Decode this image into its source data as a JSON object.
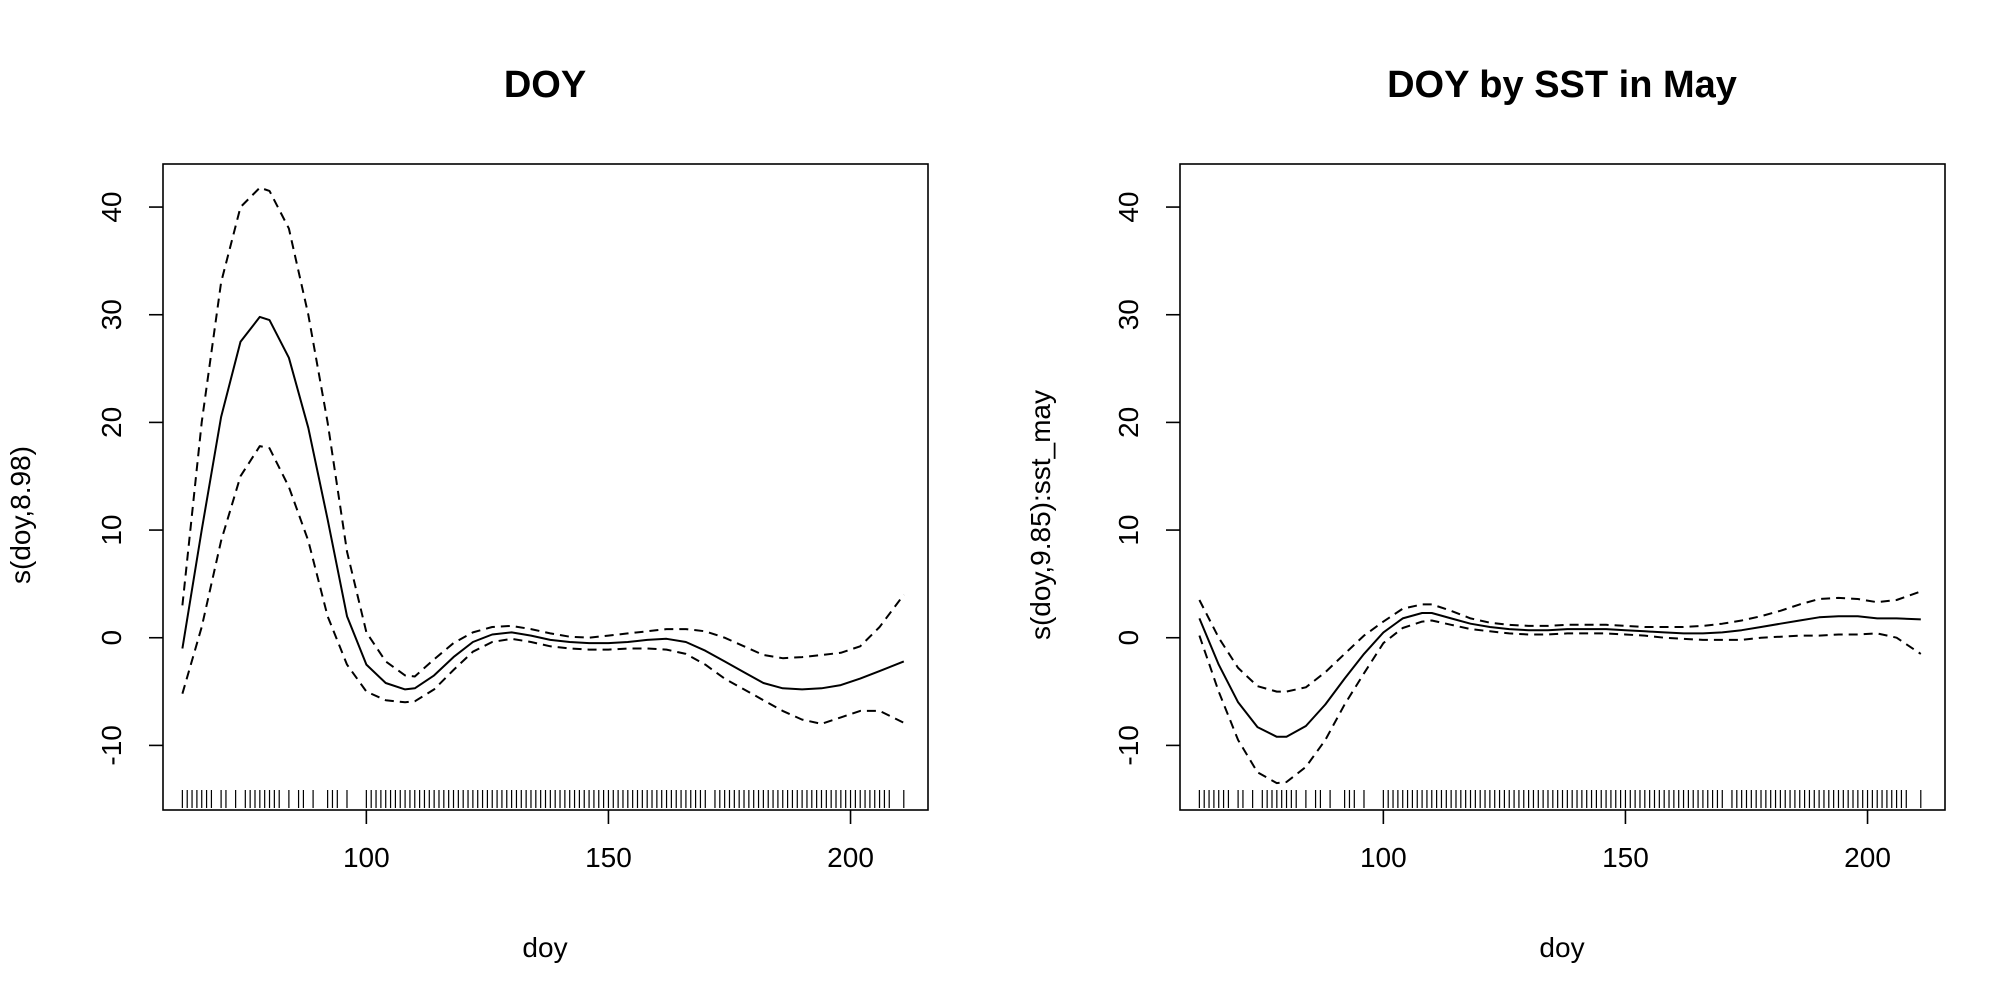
{
  "chart_data": [
    {
      "type": "line",
      "title": "DOY",
      "xlabel": "doy",
      "ylabel": "s(doy,8.98)",
      "xlim": [
        58,
        216
      ],
      "ylim": [
        -16,
        44
      ],
      "xticks": [
        100,
        150,
        200
      ],
      "yticks": [
        -10,
        0,
        10,
        20,
        30,
        40
      ],
      "x": [
        62,
        66,
        70,
        74,
        78,
        80,
        84,
        88,
        92,
        96,
        100,
        104,
        108,
        110,
        114,
        118,
        122,
        126,
        130,
        134,
        138,
        142,
        146,
        150,
        154,
        158,
        162,
        166,
        170,
        174,
        178,
        182,
        186,
        190,
        194,
        198,
        202,
        206,
        211
      ],
      "series": [
        {
          "role": "estimate",
          "values": [
            -1,
            10,
            20.5,
            27.5,
            29.8,
            29.5,
            26,
            19.5,
            11,
            2,
            -2.5,
            -4.2,
            -4.8,
            -4.7,
            -3.5,
            -1.8,
            -0.4,
            0.3,
            0.5,
            0.2,
            -0.2,
            -0.4,
            -0.5,
            -0.5,
            -0.4,
            -0.2,
            -0.1,
            -0.4,
            -1.2,
            -2.2,
            -3.2,
            -4.2,
            -4.7,
            -4.8,
            -4.7,
            -4.4,
            -3.8,
            -3.1,
            -2.2
          ]
        },
        {
          "role": "upper",
          "values": [
            3,
            20,
            33,
            40,
            41.8,
            41.5,
            38,
            30,
            20,
            8,
            0.5,
            -2.2,
            -3.5,
            -3.6,
            -2,
            -0.5,
            0.5,
            1,
            1.1,
            0.8,
            0.4,
            0.1,
            0,
            0.2,
            0.4,
            0.6,
            0.8,
            0.8,
            0.6,
            0,
            -0.8,
            -1.6,
            -1.9,
            -1.8,
            -1.6,
            -1.4,
            -0.8,
            1,
            4
          ]
        },
        {
          "role": "lower",
          "values": [
            -5.2,
            1,
            9,
            15,
            17.8,
            17.6,
            14,
            9,
            2,
            -2.5,
            -5,
            -5.8,
            -6,
            -5.9,
            -4.8,
            -3,
            -1.3,
            -0.4,
            -0.1,
            -0.4,
            -0.8,
            -1,
            -1.1,
            -1.1,
            -1,
            -1,
            -1.1,
            -1.5,
            -2.5,
            -3.8,
            -4.8,
            -5.8,
            -6.8,
            -7.6,
            -8,
            -7.4,
            -6.8,
            -6.8,
            -7.9
          ]
        }
      ],
      "rug": [
        62,
        63,
        64,
        65,
        66,
        67,
        68,
        70,
        71,
        73,
        75,
        76,
        77,
        78,
        79,
        80,
        81,
        82,
        84,
        86,
        87,
        89,
        92,
        93,
        94,
        96,
        100,
        101,
        102,
        103,
        104,
        105,
        106,
        107,
        108,
        109,
        110,
        111,
        112,
        113,
        114,
        115,
        116,
        117,
        118,
        119,
        120,
        121,
        122,
        123,
        124,
        125,
        126,
        127,
        128,
        129,
        130,
        131,
        132,
        133,
        134,
        135,
        136,
        137,
        138,
        139,
        140,
        141,
        142,
        143,
        144,
        145,
        146,
        147,
        148,
        149,
        150,
        151,
        152,
        153,
        154,
        155,
        156,
        157,
        158,
        159,
        160,
        161,
        162,
        163,
        164,
        165,
        166,
        167,
        168,
        169,
        170,
        172,
        173,
        174,
        175,
        176,
        177,
        178,
        179,
        180,
        181,
        182,
        183,
        184,
        185,
        186,
        187,
        188,
        189,
        190,
        191,
        192,
        193,
        194,
        195,
        196,
        197,
        198,
        199,
        200,
        201,
        202,
        203,
        204,
        205,
        206,
        207,
        208,
        211
      ]
    },
    {
      "type": "line",
      "title": "DOY by SST in May",
      "xlabel": "doy",
      "ylabel": "s(doy,9.85):sst_may",
      "xlim": [
        58,
        216
      ],
      "ylim": [
        -16,
        44
      ],
      "xticks": [
        100,
        150,
        200
      ],
      "yticks": [
        -10,
        0,
        10,
        20,
        30,
        40
      ],
      "x": [
        62,
        66,
        70,
        74,
        78,
        80,
        84,
        88,
        92,
        96,
        100,
        104,
        108,
        110,
        114,
        118,
        122,
        126,
        130,
        134,
        138,
        142,
        146,
        150,
        154,
        158,
        162,
        166,
        170,
        174,
        178,
        182,
        186,
        190,
        194,
        198,
        202,
        206,
        211
      ],
      "series": [
        {
          "role": "estimate",
          "values": [
            1.8,
            -2.5,
            -6,
            -8.3,
            -9.2,
            -9.2,
            -8.2,
            -6.2,
            -3.8,
            -1.5,
            0.5,
            1.8,
            2.3,
            2.3,
            1.8,
            1.3,
            1,
            0.8,
            0.7,
            0.7,
            0.8,
            0.8,
            0.8,
            0.7,
            0.6,
            0.5,
            0.4,
            0.4,
            0.5,
            0.7,
            1,
            1.3,
            1.6,
            1.9,
            2,
            2,
            1.8,
            1.8,
            1.7
          ]
        },
        {
          "role": "upper",
          "values": [
            3.5,
            0,
            -2.8,
            -4.5,
            -5,
            -5,
            -4.6,
            -3.2,
            -1.5,
            0.2,
            1.5,
            2.7,
            3.1,
            3.1,
            2.5,
            1.8,
            1.4,
            1.2,
            1.1,
            1.1,
            1.2,
            1.2,
            1.2,
            1.1,
            1,
            1,
            1,
            1.1,
            1.3,
            1.6,
            2,
            2.5,
            3.1,
            3.6,
            3.7,
            3.6,
            3.3,
            3.5,
            4.3
          ]
        },
        {
          "role": "lower",
          "values": [
            0.2,
            -5,
            -9.5,
            -12.5,
            -13.5,
            -13.4,
            -12,
            -9.5,
            -6.2,
            -3.3,
            -0.5,
            0.9,
            1.5,
            1.6,
            1.2,
            0.8,
            0.6,
            0.4,
            0.3,
            0.3,
            0.4,
            0.4,
            0.4,
            0.3,
            0.2,
            0,
            -0.1,
            -0.2,
            -0.2,
            -0.2,
            0,
            0.1,
            0.2,
            0.2,
            0.3,
            0.3,
            0.4,
            0,
            -1.5
          ]
        }
      ],
      "rug": [
        62,
        63,
        64,
        65,
        66,
        67,
        68,
        70,
        71,
        73,
        75,
        76,
        77,
        78,
        79,
        80,
        81,
        82,
        84,
        86,
        87,
        89,
        92,
        93,
        94,
        96,
        100,
        101,
        102,
        103,
        104,
        105,
        106,
        107,
        108,
        109,
        110,
        111,
        112,
        113,
        114,
        115,
        116,
        117,
        118,
        119,
        120,
        121,
        122,
        123,
        124,
        125,
        126,
        127,
        128,
        129,
        130,
        131,
        132,
        133,
        134,
        135,
        136,
        137,
        138,
        139,
        140,
        141,
        142,
        143,
        144,
        145,
        146,
        147,
        148,
        149,
        150,
        151,
        152,
        153,
        154,
        155,
        156,
        157,
        158,
        159,
        160,
        161,
        162,
        163,
        164,
        165,
        166,
        167,
        168,
        169,
        170,
        172,
        173,
        174,
        175,
        176,
        177,
        178,
        179,
        180,
        181,
        182,
        183,
        184,
        185,
        186,
        187,
        188,
        189,
        190,
        191,
        192,
        193,
        194,
        195,
        196,
        197,
        198,
        199,
        200,
        201,
        202,
        203,
        204,
        205,
        206,
        207,
        208,
        211
      ]
    }
  ]
}
